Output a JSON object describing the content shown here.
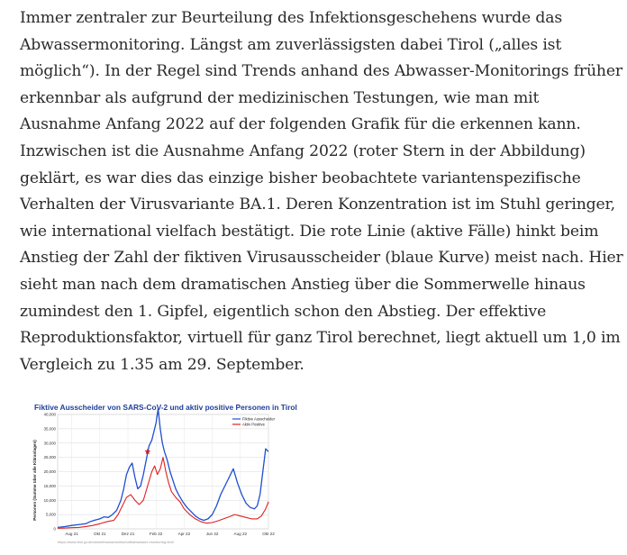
{
  "paragraph": {
    "lines": [
      "Immer zentraler zur Beurteilung des Infektionsgeschehens wurde das",
      "Abwassermonitoring. Längst am zuverlässigsten dabei Tirol („alles ist",
      "möglich“). In der Regel sind Trends anhand des Abwasser-Monitorings früher",
      "erkennbar als aufgrund der medizinischen Testungen, wie man mit",
      "Ausnahme Anfang 2022 auf der folgenden Grafik für die erkennen kann.",
      "Inzwischen ist die Ausnahme Anfang 2022 (roter Stern in der Abbildung)",
      "geklärt, es war dies das einzige bisher beobachtete variantenspezifische",
      "Verhalten der Virusvariante BA.1. Deren Konzentration ist im Stuhl geringer,",
      "wie international vielfach bestätigt. Die rote Linie (aktive Fälle) hinkt beim",
      "Anstieg der Zahl der fiktiven Virusausscheider (blaue Kurve) meist nach. Hier",
      "sieht man nach dem dramatischen Anstieg über die Sommerwelle hinaus",
      "zumindest den 1. Gipfel, eigentlich schon den Abstieg. Der effektive",
      "Reproduktionsfaktor, virtuell für ganz Tirol berechnet, liegt aktuell um 1,0 im",
      "Vergleich zu 1.35 am 29. September."
    ]
  },
  "figure": {
    "source": "https://www.tirol.gv.at/umwelt/wasserwirtschaft/abwasser-monitoring-tirol/"
  },
  "chart_data": {
    "type": "line",
    "title": "Fiktive Ausscheider von SARS-CoV-2 und aktiv positive Personen in Tirol",
    "xlabel": "",
    "ylabel": "Personen (Summe über alle Kläranlagen)",
    "ylim": [
      0,
      40000
    ],
    "yticks": [
      "0",
      "5,000",
      "10,000",
      "15,000",
      "20,000",
      "25,000",
      "30,000",
      "35,000",
      "40,000"
    ],
    "xticks": [
      {
        "label": "Aug 21",
        "x": 1
      },
      {
        "label": "Okt 21",
        "x": 3
      },
      {
        "label": "Dez 21",
        "x": 5
      },
      {
        "label": "Feb 22",
        "x": 7
      },
      {
        "label": "Apr 22",
        "x": 9
      },
      {
        "label": "Jun 22",
        "x": 11
      },
      {
        "label": "Aug 22",
        "x": 13
      },
      {
        "label": "Okt 22",
        "x": 15
      }
    ],
    "xlim": [
      0,
      15
    ],
    "grid": true,
    "legend_position": "top-right",
    "colors": {
      "fiktive": "#1f4fd1",
      "aktiv": "#e02020",
      "title": "#1f3f9a"
    },
    "marker": {
      "symbol": "star",
      "color": "#cc2020",
      "x": 6.4,
      "y": 27000
    },
    "series": [
      {
        "name": "Fiktive Ausscheider",
        "x": [
          0,
          0.5,
          1,
          1.5,
          2,
          2.3,
          2.6,
          3,
          3.3,
          3.6,
          3.9,
          4.2,
          4.5,
          4.7,
          4.9,
          5.1,
          5.3,
          5.5,
          5.7,
          5.9,
          6.1,
          6.3,
          6.5,
          6.7,
          6.85,
          7,
          7.15,
          7.3,
          7.45,
          7.6,
          7.8,
          8,
          8.2,
          8.4,
          8.6,
          8.9,
          9.2,
          9.5,
          9.8,
          10.1,
          10.4,
          10.7,
          11,
          11.3,
          11.6,
          11.9,
          12.2,
          12.5,
          12.8,
          13.1,
          13.4,
          13.7,
          14,
          14.2,
          14.4,
          14.6,
          14.8,
          15
        ],
        "values": [
          500,
          800,
          1200,
          1500,
          1800,
          2500,
          3000,
          3500,
          4200,
          4000,
          5000,
          6500,
          10000,
          14000,
          19000,
          21500,
          23000,
          18000,
          14000,
          15000,
          19000,
          24000,
          29000,
          31000,
          34000,
          37000,
          42000,
          35000,
          30000,
          27000,
          24000,
          20000,
          17000,
          14000,
          12000,
          9500,
          7500,
          6000,
          4500,
          3500,
          3000,
          3500,
          5000,
          8000,
          12000,
          15000,
          18000,
          21000,
          16000,
          12000,
          9000,
          7500,
          7000,
          8000,
          12000,
          20000,
          28000,
          27000
        ]
      },
      {
        "name": "Aktiv Positive",
        "x": [
          0,
          0.5,
          1,
          1.5,
          2,
          2.5,
          3,
          3.5,
          4,
          4.3,
          4.6,
          4.9,
          5.2,
          5.5,
          5.8,
          6.1,
          6.4,
          6.7,
          6.9,
          7.1,
          7.3,
          7.5,
          7.7,
          7.9,
          8.1,
          8.4,
          8.7,
          9,
          9.4,
          9.8,
          10.2,
          10.6,
          11,
          11.4,
          11.8,
          12.2,
          12.6,
          13,
          13.4,
          13.8,
          14.2,
          14.5,
          14.8,
          15
        ],
        "values": [
          200,
          300,
          400,
          500,
          800,
          1200,
          1800,
          2500,
          3000,
          5000,
          8000,
          11000,
          12000,
          10000,
          8500,
          10000,
          15000,
          20000,
          22000,
          19000,
          21000,
          25000,
          20000,
          16000,
          13000,
          11000,
          9500,
          7000,
          5000,
          3500,
          2500,
          2000,
          2200,
          2800,
          3500,
          4200,
          5000,
          4500,
          4000,
          3500,
          3500,
          4500,
          7000,
          9500
        ]
      }
    ]
  }
}
